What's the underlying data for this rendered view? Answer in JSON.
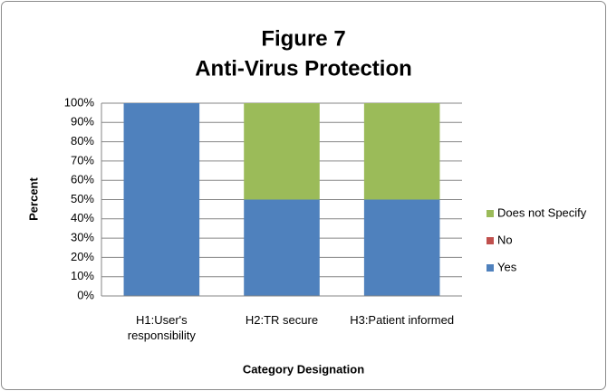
{
  "chart_data": {
    "type": "stacked_bar",
    "title": "Figure 7",
    "subtitle": "Anti-Virus Protection",
    "x_label": "Category Designation",
    "y_label": "Percent",
    "categories": [
      "H1:User's responsibility",
      "H2:TR secure",
      "H3:Patient informed"
    ],
    "series": [
      {
        "name": "Yes",
        "color": "#4f81bd",
        "values": [
          100,
          50,
          50
        ]
      },
      {
        "name": "No",
        "color": "#c0504d",
        "values": [
          0,
          0,
          0
        ]
      },
      {
        "name": "Does not Specify",
        "color": "#9bbb59",
        "values": [
          0,
          50,
          50
        ]
      }
    ],
    "ylim": [
      0,
      100
    ],
    "yticks": [
      {
        "value": 0,
        "label": "0%"
      },
      {
        "value": 10,
        "label": "10%"
      },
      {
        "value": 20,
        "label": "20%"
      },
      {
        "value": 30,
        "label": "30%"
      },
      {
        "value": 40,
        "label": "40%"
      },
      {
        "value": 50,
        "label": "50%"
      },
      {
        "value": 60,
        "label": "60%"
      },
      {
        "value": 70,
        "label": "70%"
      },
      {
        "value": 80,
        "label": "80%"
      },
      {
        "value": 90,
        "label": "90%"
      },
      {
        "value": 100,
        "label": "100%"
      }
    ],
    "grid": true,
    "legend": "right"
  }
}
